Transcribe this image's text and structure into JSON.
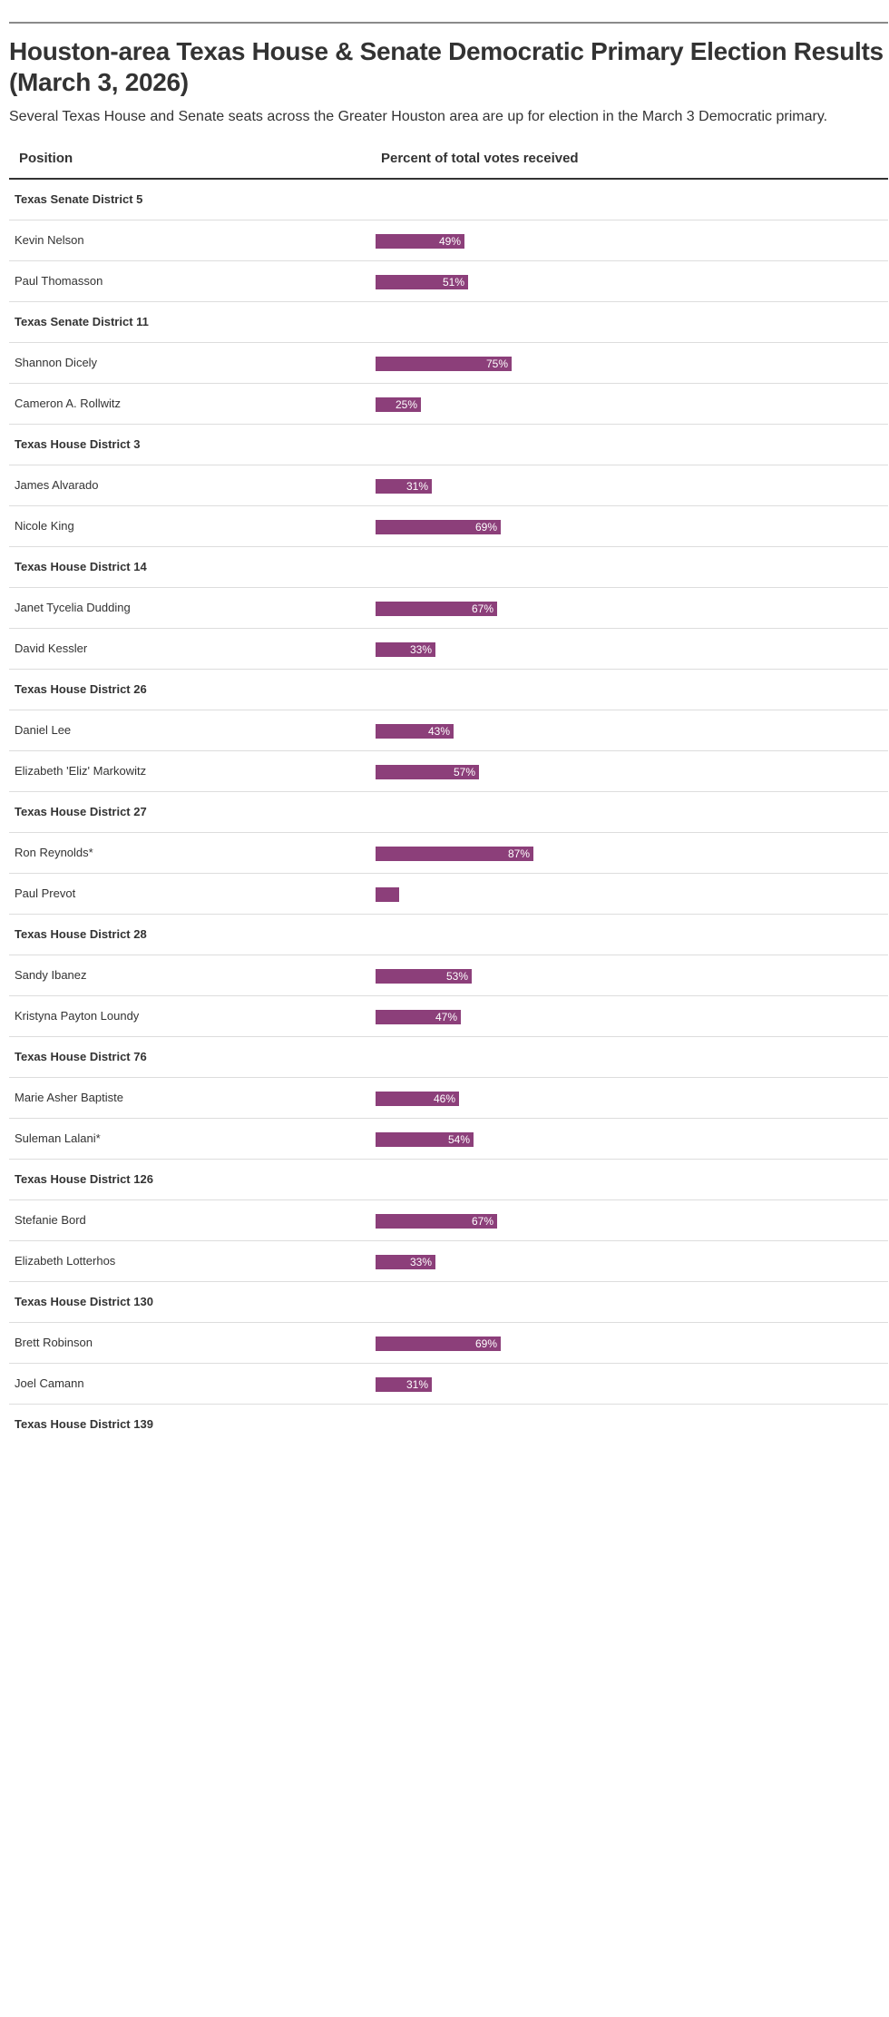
{
  "chart_data": {
    "type": "bar",
    "title": "Houston-area Texas House & Senate Democratic Primary Election Results (March 3, 2026)",
    "subtitle": "Several Texas House and Senate seats across the Greater Houston area are up for election in the March 3 Democratic primary.",
    "columns": {
      "position": "Position",
      "percent": "Percent of total votes received"
    },
    "bar_color": "#8c3f7a",
    "xlim": [
      0,
      100
    ],
    "rows": [
      {
        "kind": "group",
        "label": "Texas Senate District 5"
      },
      {
        "kind": "candidate",
        "label": "Kevin Nelson",
        "value": 49,
        "value_label": "49%"
      },
      {
        "kind": "candidate",
        "label": "Paul Thomasson",
        "value": 51,
        "value_label": "51%"
      },
      {
        "kind": "group",
        "label": "Texas Senate District 11"
      },
      {
        "kind": "candidate",
        "label": "Shannon Dicely",
        "value": 75,
        "value_label": "75%"
      },
      {
        "kind": "candidate",
        "label": "Cameron A. Rollwitz",
        "value": 25,
        "value_label": "25%"
      },
      {
        "kind": "group",
        "label": "Texas House District 3"
      },
      {
        "kind": "candidate",
        "label": "James Alvarado",
        "value": 31,
        "value_label": "31%"
      },
      {
        "kind": "candidate",
        "label": "Nicole King",
        "value": 69,
        "value_label": "69%"
      },
      {
        "kind": "group",
        "label": "Texas House District 14"
      },
      {
        "kind": "candidate",
        "label": "Janet Tycelia Dudding",
        "value": 67,
        "value_label": "67%"
      },
      {
        "kind": "candidate",
        "label": "David Kessler",
        "value": 33,
        "value_label": "33%"
      },
      {
        "kind": "group",
        "label": "Texas House District 26"
      },
      {
        "kind": "candidate",
        "label": "Daniel Lee",
        "value": 43,
        "value_label": "43%"
      },
      {
        "kind": "candidate",
        "label": "Elizabeth 'Eliz' Markowitz",
        "value": 57,
        "value_label": "57%"
      },
      {
        "kind": "group",
        "label": "Texas House District 27"
      },
      {
        "kind": "candidate",
        "label": "Ron Reynolds*",
        "value": 87,
        "value_label": "87%"
      },
      {
        "kind": "candidate",
        "label": "Paul Prevot",
        "value": 13,
        "value_label": ""
      },
      {
        "kind": "group",
        "label": "Texas House District 28"
      },
      {
        "kind": "candidate",
        "label": "Sandy Ibanez",
        "value": 53,
        "value_label": "53%"
      },
      {
        "kind": "candidate",
        "label": "Kristyna Payton Loundy",
        "value": 47,
        "value_label": "47%"
      },
      {
        "kind": "group",
        "label": "Texas House District 76"
      },
      {
        "kind": "candidate",
        "label": "Marie Asher Baptiste",
        "value": 46,
        "value_label": "46%"
      },
      {
        "kind": "candidate",
        "label": "Suleman Lalani*",
        "value": 54,
        "value_label": "54%"
      },
      {
        "kind": "group",
        "label": "Texas House District 126"
      },
      {
        "kind": "candidate",
        "label": "Stefanie Bord",
        "value": 67,
        "value_label": "67%"
      },
      {
        "kind": "candidate",
        "label": "Elizabeth Lotterhos",
        "value": 33,
        "value_label": "33%"
      },
      {
        "kind": "group",
        "label": "Texas House District 130"
      },
      {
        "kind": "candidate",
        "label": "Brett Robinson",
        "value": 69,
        "value_label": "69%"
      },
      {
        "kind": "candidate",
        "label": "Joel Camann",
        "value": 31,
        "value_label": "31%"
      },
      {
        "kind": "group",
        "label": "Texas House District 139"
      }
    ]
  }
}
